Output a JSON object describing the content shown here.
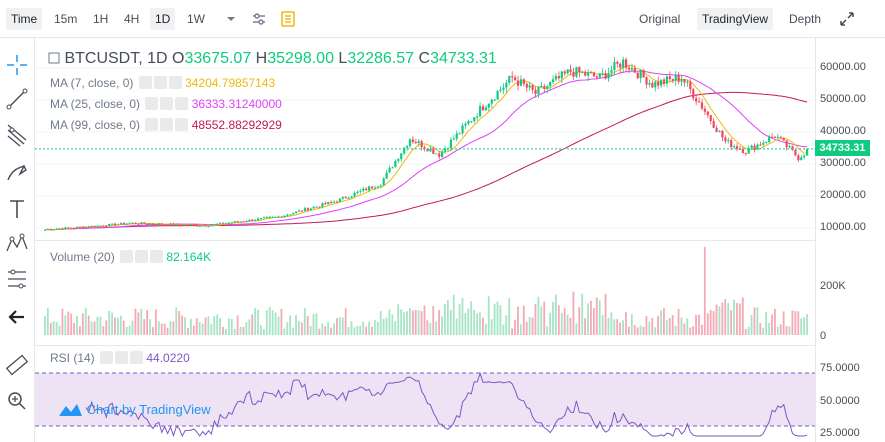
{
  "toolbar": {
    "intervals": [
      {
        "label": "Time",
        "active": true
      },
      {
        "label": "15m",
        "active": false
      },
      {
        "label": "1H",
        "active": false
      },
      {
        "label": "4H",
        "active": false
      },
      {
        "label": "1D",
        "active": true
      },
      {
        "label": "1W",
        "active": false
      }
    ],
    "views": [
      {
        "label": "Original",
        "active": false
      },
      {
        "label": "TradingView",
        "active": true
      },
      {
        "label": "Depth",
        "active": false
      }
    ]
  },
  "legend": {
    "symbol": "BTCUSDT, 1D",
    "open_label": "O",
    "open": "33675.07",
    "high_label": "H",
    "high": "35298.00",
    "low_label": "L",
    "low": "32286.57",
    "close_label": "C",
    "close": "34733.31",
    "ma7_label": "MA (7, close, 0)",
    "ma7_value": "34204.79857143",
    "ma25_label": "MA (25, close, 0)",
    "ma25_value": "36333.31240000",
    "ma99_label": "MA (99, close, 0)",
    "ma99_value": "48552.88292929",
    "volume_label": "Volume (20)",
    "volume_value": "82.164K",
    "rsi_label": "RSI (14)",
    "rsi_value": "44.0220"
  },
  "price_axis": [
    "60000.00",
    "50000.00",
    "40000.00",
    "30000.00",
    "20000.00",
    "10000.00"
  ],
  "last_price": "34733.31",
  "volume_axis": [
    "200K",
    "0"
  ],
  "rsi_axis": [
    "75.0000",
    "50.0000",
    "25.0000"
  ],
  "watermark": "Chart by TradingView",
  "colors": {
    "up": "#0ecb81",
    "down": "#f6465d",
    "ma7": "#f0b90b",
    "ma25": "#e040fb",
    "ma99": "#c2185b",
    "rsi": "#7e57c2"
  },
  "chart_data": {
    "type": "candlestick",
    "title": "BTCUSDT, 1D",
    "ylim": [
      5000,
      65000
    ],
    "close_path_keypoints": [
      {
        "x": 0,
        "y": 9500
      },
      {
        "x": 30,
        "y": 11500
      },
      {
        "x": 55,
        "y": 10800
      },
      {
        "x": 80,
        "y": 13500
      },
      {
        "x": 100,
        "y": 18500
      },
      {
        "x": 115,
        "y": 24000
      },
      {
        "x": 125,
        "y": 38000
      },
      {
        "x": 135,
        "y": 33000
      },
      {
        "x": 150,
        "y": 48000
      },
      {
        "x": 160,
        "y": 57000
      },
      {
        "x": 168,
        "y": 52000
      },
      {
        "x": 180,
        "y": 59000
      },
      {
        "x": 190,
        "y": 57000
      },
      {
        "x": 198,
        "y": 62000
      },
      {
        "x": 208,
        "y": 55000
      },
      {
        "x": 218,
        "y": 57000
      },
      {
        "x": 225,
        "y": 48000
      },
      {
        "x": 233,
        "y": 37000
      },
      {
        "x": 240,
        "y": 34000
      },
      {
        "x": 250,
        "y": 39000
      },
      {
        "x": 258,
        "y": 32000
      },
      {
        "x": 262,
        "y": 34733
      }
    ]
  }
}
